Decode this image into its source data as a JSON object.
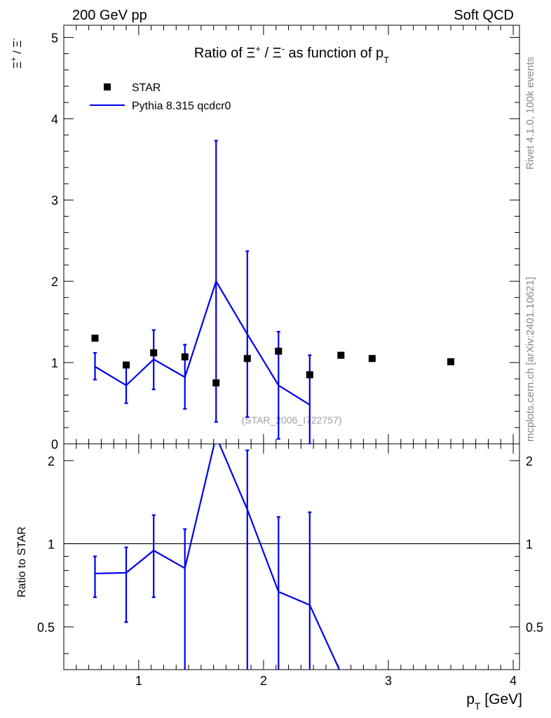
{
  "header": {
    "left": "200 GeV pp",
    "right": "Soft QCD"
  },
  "side_labels": {
    "rivet": "Rivet 4.1.0,  100k events",
    "mcplots": "mcplots.cern.ch [arXiv:2401.10621]"
  },
  "chart_data": {
    "type": "scatter",
    "title": "Ratio of Ξ⁺ / Ξ⁻ as function of p_T",
    "watermark": "(STAR_2006_I722757)",
    "xlabel": "p_T [GeV]",
    "ylabel": "Ξ⁺ / Ξ⁻",
    "ratio_ylabel": "Ratio to STAR",
    "xlim": [
      0.4,
      4.05
    ],
    "ylim": [
      0,
      5.15
    ],
    "ratio_ylim": [
      0.35,
      2.3
    ],
    "ratio_log": true,
    "x_ticks": [
      "1",
      "2",
      "3",
      "4"
    ],
    "y_ticks": [
      "0",
      "1",
      "2",
      "3",
      "4",
      "5"
    ],
    "ratio_ticks": [
      "0.5",
      "1",
      "2"
    ],
    "legend": {
      "placement": "top-left",
      "entries": [
        "STAR",
        "Pythia 8.315 qcdcr0"
      ]
    },
    "colors": {
      "data": "#000000",
      "mc": "#0000ee"
    },
    "series": [
      {
        "name": "STAR",
        "kind": "points",
        "x": [
          0.65,
          0.9,
          1.12,
          1.37,
          1.62,
          1.87,
          2.12,
          2.37,
          2.62,
          2.87,
          3.5
        ],
        "y": [
          1.3,
          0.97,
          1.12,
          1.07,
          0.75,
          1.05,
          1.14,
          0.85,
          1.09,
          1.05,
          1.01
        ]
      },
      {
        "name": "Pythia 8.315 qcdcr0",
        "kind": "line",
        "x": [
          0.65,
          0.9,
          1.12,
          1.37,
          1.62,
          1.87,
          2.12,
          2.37
        ],
        "y": [
          0.95,
          0.72,
          1.04,
          0.82,
          2.0,
          1.35,
          0.72,
          0.48
        ],
        "err_lo": [
          0.79,
          0.5,
          0.67,
          0.43,
          0.27,
          0.33,
          0.06,
          0.0
        ],
        "err_hi": [
          1.12,
          0.98,
          1.4,
          1.22,
          3.73,
          2.37,
          1.38,
          1.09
        ]
      }
    ],
    "ratio_series": {
      "name": "Pythia 8.315 qcdcr0",
      "x": [
        0.65,
        0.9,
        1.12,
        1.37,
        1.62,
        1.87,
        2.12,
        2.37,
        2.62
      ],
      "y": [
        0.78,
        0.785,
        0.945,
        0.815,
        2.45,
        1.33,
        0.67,
        0.6,
        0.34
      ],
      "err_lo": [
        0.64,
        0.52,
        0.64,
        0.3,
        null,
        0.3,
        0.3,
        0.3,
        null
      ],
      "err_hi": [
        0.9,
        0.97,
        1.27,
        1.13,
        null,
        2.18,
        1.25,
        1.3,
        null
      ]
    }
  }
}
